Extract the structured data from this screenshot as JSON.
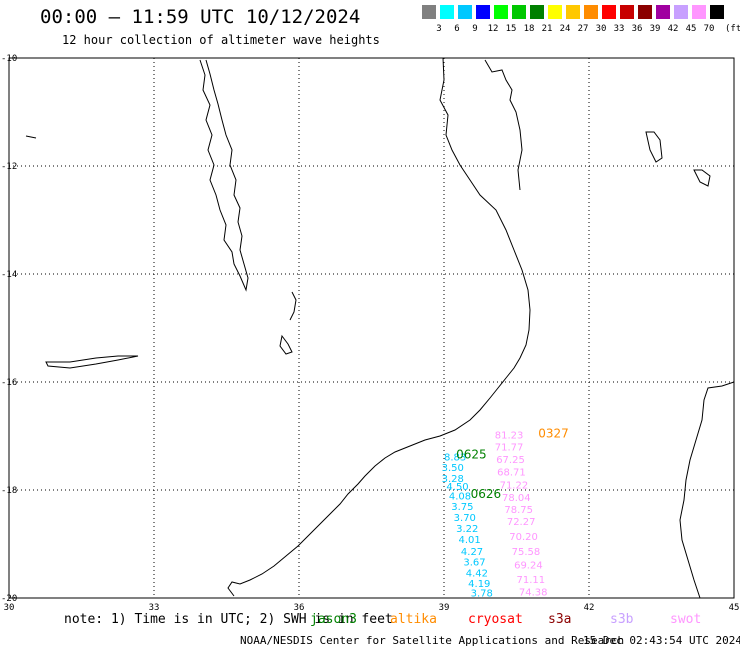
{
  "header": {
    "title": "00:00 – 11:59 UTC 10/12/2024",
    "subtitle": "12 hour collection of altimeter wave heights"
  },
  "legend": {
    "colors": [
      "#808080",
      "#00ffff",
      "#00c8ff",
      "#0000ff",
      "#00ff00",
      "#00c800",
      "#008000",
      "#ffff00",
      "#ffc800",
      "#ff8c00",
      "#ff0000",
      "#c80000",
      "#8b0000",
      "#a000a0",
      "#c8a0ff",
      "#ff96ff",
      "#000000"
    ],
    "labels": [
      "3",
      "6",
      "9",
      "12",
      "15",
      "18",
      "21",
      "24",
      "27",
      "30",
      "33",
      "36",
      "39",
      "42",
      "45",
      "70"
    ],
    "unit": "(ft)"
  },
  "map": {
    "lon_ticks": [
      "30",
      "33",
      "36",
      "39",
      "42",
      "45"
    ],
    "lat_ticks": [
      "-10",
      "-12",
      "-14",
      "-16",
      "-18",
      "-20"
    ],
    "lon_range": [
      30,
      45
    ],
    "lat_range": [
      -20,
      -10
    ],
    "grid": "dotted"
  },
  "observations": [
    {
      "lon": 40.05,
      "lat": -17.05,
      "value": "81.23",
      "color": "#ff96ff"
    },
    {
      "lon": 40.05,
      "lat": -17.27,
      "value": "71.77",
      "color": "#ff96ff"
    },
    {
      "lon": 39.0,
      "lat": -17.45,
      "value": "8.83",
      "color": "#00c8ff"
    },
    {
      "lon": 40.08,
      "lat": -17.5,
      "value": "67.25",
      "color": "#ff96ff"
    },
    {
      "lon": 38.95,
      "lat": -17.65,
      "value": "3.50",
      "color": "#00c8ff"
    },
    {
      "lon": 40.1,
      "lat": -17.73,
      "value": "68.71",
      "color": "#ff96ff"
    },
    {
      "lon": 38.95,
      "lat": -17.85,
      "value": "3.28",
      "color": "#00c8ff"
    },
    {
      "lon": 40.15,
      "lat": -17.97,
      "value": "71.22",
      "color": "#ff96ff"
    },
    {
      "lon": 39.05,
      "lat": -18.0,
      "value": "4.50",
      "color": "#00c8ff"
    },
    {
      "lon": 39.1,
      "lat": -18.18,
      "value": "4.08",
      "color": "#00c8ff"
    },
    {
      "lon": 40.2,
      "lat": -18.2,
      "value": "78.04",
      "color": "#ff96ff"
    },
    {
      "lon": 39.15,
      "lat": -18.37,
      "value": "3.75",
      "color": "#00c8ff"
    },
    {
      "lon": 40.25,
      "lat": -18.43,
      "value": "78.75",
      "color": "#ff96ff"
    },
    {
      "lon": 39.2,
      "lat": -18.57,
      "value": "3.70",
      "color": "#00c8ff"
    },
    {
      "lon": 40.3,
      "lat": -18.65,
      "value": "72.27",
      "color": "#ff96ff"
    },
    {
      "lon": 39.25,
      "lat": -18.78,
      "value": "3.22",
      "color": "#00c8ff"
    },
    {
      "lon": 40.35,
      "lat": -18.93,
      "value": "70.20",
      "color": "#ff96ff"
    },
    {
      "lon": 39.3,
      "lat": -18.98,
      "value": "4.01",
      "color": "#00c8ff"
    },
    {
      "lon": 39.35,
      "lat": -19.2,
      "value": "4.27",
      "color": "#00c8ff"
    },
    {
      "lon": 40.4,
      "lat": -19.2,
      "value": "75.58",
      "color": "#ff96ff"
    },
    {
      "lon": 39.4,
      "lat": -19.4,
      "value": "3.67",
      "color": "#00c8ff"
    },
    {
      "lon": 40.45,
      "lat": -19.45,
      "value": "69.24",
      "color": "#ff96ff"
    },
    {
      "lon": 39.45,
      "lat": -19.6,
      "value": "4.42",
      "color": "#00c8ff"
    },
    {
      "lon": 40.5,
      "lat": -19.72,
      "value": "71.11",
      "color": "#ff96ff"
    },
    {
      "lon": 39.5,
      "lat": -19.8,
      "value": "4.19",
      "color": "#00c8ff"
    },
    {
      "lon": 40.55,
      "lat": -19.95,
      "value": "74.38",
      "color": "#ff96ff"
    },
    {
      "lon": 39.55,
      "lat": -19.97,
      "value": "3.78",
      "color": "#00c8ff"
    }
  ],
  "pass_times": [
    {
      "lon": 40.95,
      "lat": -17.03,
      "label": "0327",
      "color": "#ff8c00"
    },
    {
      "lon": 39.25,
      "lat": -17.42,
      "label": "0625",
      "color": "#008000"
    },
    {
      "lon": 39.55,
      "lat": -18.15,
      "label": "0626",
      "color": "#008000"
    }
  ],
  "footer": {
    "note": "note: 1) Time is in UTC; 2) SWH is in feet",
    "satellites": [
      {
        "name": "jason3",
        "color": "#008000"
      },
      {
        "name": "altika",
        "color": "#ff8c00"
      },
      {
        "name": "cryosat",
        "color": "#ff0000"
      },
      {
        "name": "s3a",
        "color": "#8b0000"
      },
      {
        "name": "s3b",
        "color": "#c8a0ff"
      },
      {
        "name": "swot",
        "color": "#ff96ff"
      }
    ],
    "credit_org": "NOAA/NESDIS Center for Satellite Applications and Research",
    "credit_time": "15 Dec 02:43:54 UTC 2024"
  }
}
